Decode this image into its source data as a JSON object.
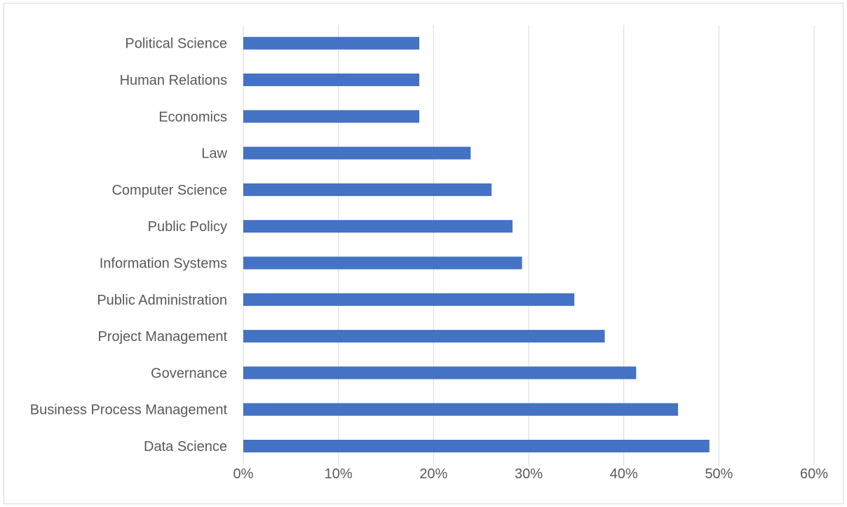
{
  "chart_data": {
    "type": "bar",
    "orientation": "horizontal",
    "title": "",
    "xlabel": "",
    "ylabel": "",
    "categories": [
      "Data Science",
      "Business Process Management",
      "Governance",
      "Project Management",
      "Public Administration",
      "Information Systems",
      "Public Policy",
      "Computer Science",
      "Law",
      "Economics",
      "Human Relations",
      "Political Science"
    ],
    "values": [
      49.0,
      45.7,
      41.3,
      38.0,
      34.8,
      29.3,
      28.3,
      26.1,
      23.9,
      18.5,
      18.5,
      18.5
    ],
    "xlim": [
      0,
      60
    ],
    "x_ticks": [
      0,
      10,
      20,
      30,
      40,
      50,
      60
    ],
    "x_tick_labels": [
      "0%",
      "10%",
      "20%",
      "30%",
      "40%",
      "50%",
      "60%"
    ],
    "grid": "vertical",
    "legend": "none",
    "colors": {
      "bar": "#4472c4",
      "grid": "#d9d9d9",
      "text": "#595959"
    }
  }
}
